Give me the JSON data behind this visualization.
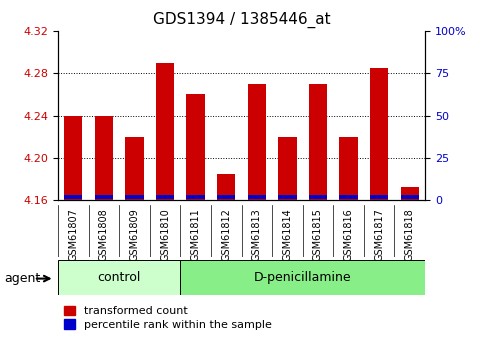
{
  "title": "GDS1394 / 1385446_at",
  "samples": [
    "GSM61807",
    "GSM61808",
    "GSM61809",
    "GSM61810",
    "GSM61811",
    "GSM61812",
    "GSM61813",
    "GSM61814",
    "GSM61815",
    "GSM61816",
    "GSM61817",
    "GSM61818"
  ],
  "red_values": [
    4.24,
    4.24,
    4.22,
    4.29,
    4.26,
    4.185,
    4.27,
    4.22,
    4.27,
    4.22,
    4.285,
    4.172
  ],
  "ymin": 4.16,
  "ymax": 4.32,
  "yticks": [
    4.16,
    4.2,
    4.24,
    4.28,
    4.32
  ],
  "grid_lines": [
    4.2,
    4.24,
    4.28
  ],
  "y2ticks": [
    0,
    25,
    50,
    75,
    100
  ],
  "y2labels": [
    "0",
    "25",
    "50",
    "75",
    "100%"
  ],
  "control_count": 4,
  "control_label": "control",
  "treatment_label": "D-penicillamine",
  "agent_label": "agent",
  "legend_red": "transformed count",
  "legend_blue": "percentile rank within the sample",
  "bar_width": 0.6,
  "red_color": "#cc0000",
  "blue_color": "#0000cc",
  "grid_color": "#000000",
  "control_bg": "#ccffcc",
  "treatment_bg": "#88ee88",
  "xlabel_color": "#cc0000",
  "y2_color": "#0000cc",
  "base": 4.16,
  "blue_bar_height": 0.004
}
